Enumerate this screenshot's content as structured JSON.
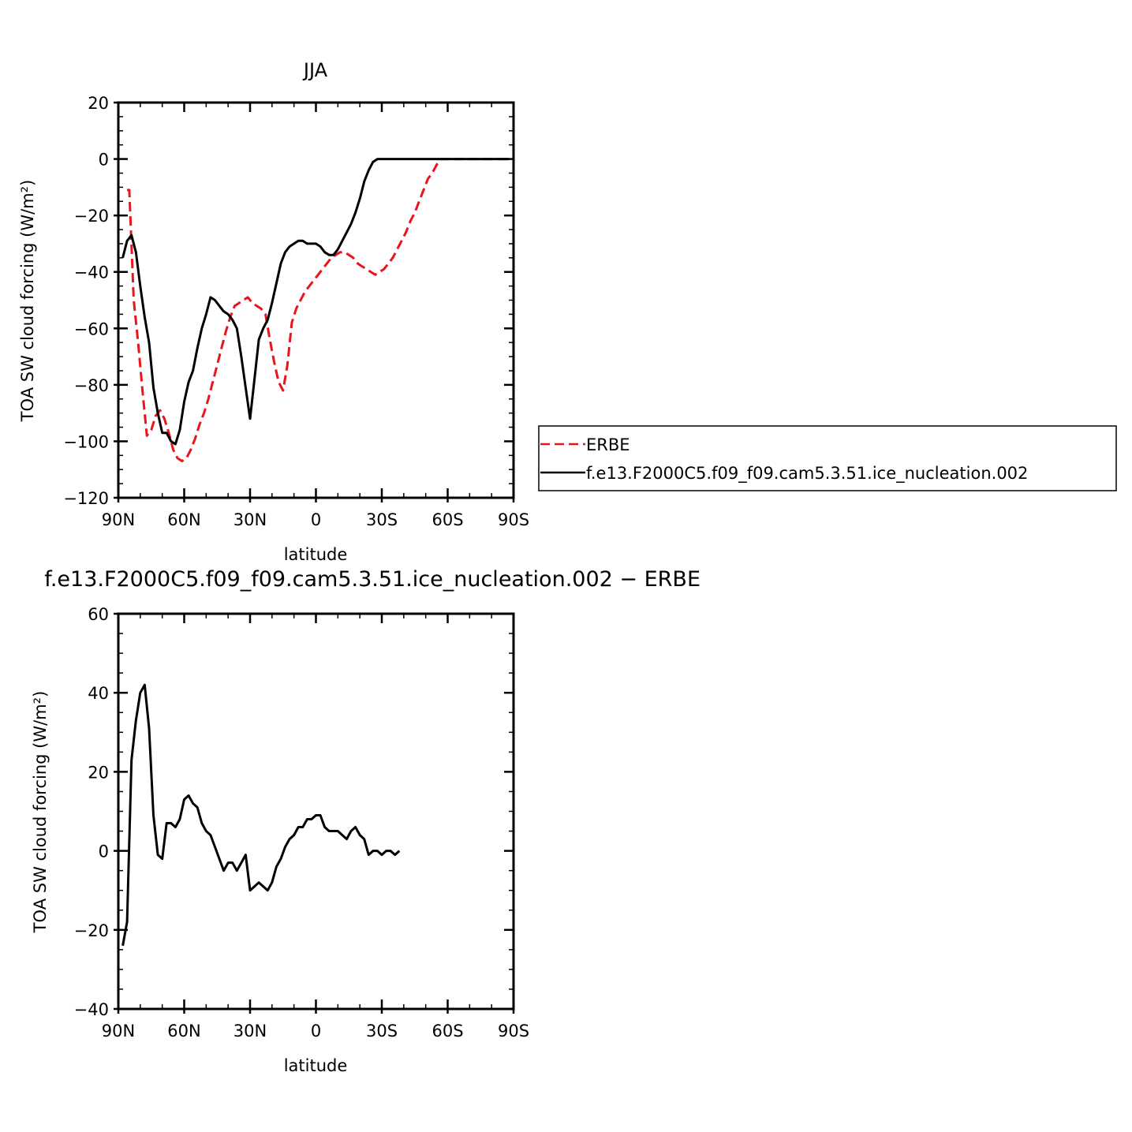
{
  "chart_data": [
    {
      "type": "line",
      "title": "JJA",
      "xlabel": "latitude",
      "ylabel": "TOA SW cloud forcing (W/m²)",
      "ylim": [
        -120,
        20
      ],
      "xlim": [
        90,
        -90
      ],
      "xticks": [
        {
          "value": 90,
          "label": "90N"
        },
        {
          "value": 60,
          "label": "60N"
        },
        {
          "value": 30,
          "label": "30N"
        },
        {
          "value": 0,
          "label": "0"
        },
        {
          "value": -30,
          "label": "30S"
        },
        {
          "value": -60,
          "label": "60S"
        },
        {
          "value": -90,
          "label": "90S"
        }
      ],
      "yticks": [
        {
          "value": 20,
          "label": "20"
        },
        {
          "value": 0,
          "label": "0"
        },
        {
          "value": -20,
          "label": "−20"
        },
        {
          "value": -40,
          "label": "−40"
        },
        {
          "value": -60,
          "label": "−60"
        },
        {
          "value": -80,
          "label": "−80"
        },
        {
          "value": -100,
          "label": "−100"
        },
        {
          "value": -120,
          "label": "−120"
        }
      ],
      "legend_position": "right",
      "series": [
        {
          "name": "ERBE",
          "color": "#e8161c",
          "style": "dashed",
          "points": [
            [
              86,
              -11
            ],
            [
              85,
              -11
            ],
            [
              83,
              -50
            ],
            [
              81,
              -65
            ],
            [
              79,
              -82
            ],
            [
              77,
              -98
            ],
            [
              75,
              -96
            ],
            [
              73,
              -91
            ],
            [
              71,
              -89
            ],
            [
              69,
              -92
            ],
            [
              67,
              -97
            ],
            [
              65,
              -103
            ],
            [
              63,
              -106
            ],
            [
              61,
              -107
            ],
            [
              59,
              -106
            ],
            [
              57,
              -103
            ],
            [
              55,
              -99
            ],
            [
              53,
              -94
            ],
            [
              51,
              -90
            ],
            [
              49,
              -85
            ],
            [
              47,
              -79
            ],
            [
              45,
              -73
            ],
            [
              43,
              -67
            ],
            [
              41,
              -61
            ],
            [
              39,
              -56
            ],
            [
              37,
              -52
            ],
            [
              35,
              -51
            ],
            [
              33,
              -50
            ],
            [
              31,
              -49
            ],
            [
              29,
              -51
            ],
            [
              27,
              -52
            ],
            [
              25,
              -53
            ],
            [
              23,
              -55
            ],
            [
              21,
              -64
            ],
            [
              19,
              -72
            ],
            [
              17,
              -79
            ],
            [
              15,
              -82
            ],
            [
              13,
              -73
            ],
            [
              11,
              -58
            ],
            [
              9,
              -53
            ],
            [
              7,
              -50
            ],
            [
              5,
              -47
            ],
            [
              3,
              -45
            ],
            [
              1,
              -43
            ],
            [
              -1,
              -41
            ],
            [
              -3,
              -39
            ],
            [
              -5,
              -37
            ],
            [
              -7,
              -35
            ],
            [
              -9,
              -34
            ],
            [
              -11,
              -33
            ],
            [
              -13,
              -33
            ],
            [
              -15,
              -34
            ],
            [
              -17,
              -35
            ],
            [
              -19,
              -37
            ],
            [
              -21,
              -38
            ],
            [
              -23,
              -39
            ],
            [
              -25,
              -40
            ],
            [
              -27,
              -41
            ],
            [
              -29,
              -40
            ],
            [
              -31,
              -39
            ],
            [
              -33,
              -37
            ],
            [
              -35,
              -35
            ],
            [
              -37,
              -32
            ],
            [
              -39,
              -29
            ],
            [
              -41,
              -26
            ],
            [
              -43,
              -22
            ],
            [
              -45,
              -19
            ],
            [
              -47,
              -15
            ],
            [
              -49,
              -11
            ],
            [
              -51,
              -7
            ],
            [
              -53,
              -5
            ],
            [
              -55,
              -2
            ],
            [
              -57,
              0
            ],
            [
              -60,
              0
            ],
            [
              -65,
              0
            ],
            [
              -70,
              0
            ],
            [
              -75,
              0
            ],
            [
              -80,
              0
            ],
            [
              -85,
              0
            ],
            [
              -88,
              0
            ]
          ]
        },
        {
          "name": "f.e13.F2000C5.f09_f09.cam5.3.51.ice_nucleation.002",
          "color": "#000000",
          "style": "solid",
          "points": [
            [
              88,
              -35
            ],
            [
              86,
              -29
            ],
            [
              84,
              -27
            ],
            [
              82,
              -33
            ],
            [
              80,
              -45
            ],
            [
              78,
              -56
            ],
            [
              76,
              -65
            ],
            [
              74,
              -81
            ],
            [
              72,
              -90
            ],
            [
              70,
              -97
            ],
            [
              68,
              -97
            ],
            [
              66,
              -100
            ],
            [
              64,
              -101
            ],
            [
              62,
              -96
            ],
            [
              60,
              -86
            ],
            [
              58,
              -79
            ],
            [
              56,
              -75
            ],
            [
              54,
              -67
            ],
            [
              52,
              -60
            ],
            [
              50,
              -55
            ],
            [
              48,
              -49
            ],
            [
              46,
              -50
            ],
            [
              44,
              -52
            ],
            [
              42,
              -54
            ],
            [
              40,
              -55
            ],
            [
              38,
              -57
            ],
            [
              36,
              -60
            ],
            [
              34,
              -70
            ],
            [
              32,
              -81
            ],
            [
              30,
              -92
            ],
            [
              28,
              -78
            ],
            [
              26,
              -64
            ],
            [
              24,
              -60
            ],
            [
              22,
              -57
            ],
            [
              20,
              -51
            ],
            [
              18,
              -44
            ],
            [
              16,
              -37
            ],
            [
              14,
              -33
            ],
            [
              12,
              -31
            ],
            [
              10,
              -30
            ],
            [
              8,
              -29
            ],
            [
              6,
              -29
            ],
            [
              4,
              -30
            ],
            [
              2,
              -30
            ],
            [
              0,
              -30
            ],
            [
              -2,
              -31
            ],
            [
              -4,
              -33
            ],
            [
              -6,
              -34
            ],
            [
              -8,
              -34
            ],
            [
              -10,
              -32
            ],
            [
              -12,
              -29
            ],
            [
              -14,
              -26
            ],
            [
              -16,
              -23
            ],
            [
              -18,
              -19
            ],
            [
              -20,
              -14
            ],
            [
              -22,
              -8
            ],
            [
              -24,
              -4
            ],
            [
              -26,
              -1
            ],
            [
              -28,
              0
            ],
            [
              -35,
              0
            ],
            [
              -45,
              0
            ],
            [
              -55,
              0
            ],
            [
              -65,
              0
            ],
            [
              -75,
              0
            ],
            [
              -85,
              0
            ],
            [
              -88,
              0
            ]
          ]
        }
      ]
    },
    {
      "type": "line",
      "title": "f.e13.F2000C5.f09_f09.cam5.3.51.ice_nucleation.002 − ERBE",
      "xlabel": "latitude",
      "ylabel": "TOA SW cloud forcing (W/m²)",
      "ylim": [
        -40,
        60
      ],
      "xlim": [
        90,
        -90
      ],
      "xticks": [
        {
          "value": 90,
          "label": "90N"
        },
        {
          "value": 60,
          "label": "60N"
        },
        {
          "value": 30,
          "label": "30N"
        },
        {
          "value": 0,
          "label": "0"
        },
        {
          "value": -30,
          "label": "30S"
        },
        {
          "value": -60,
          "label": "60S"
        },
        {
          "value": -90,
          "label": "90S"
        }
      ],
      "yticks": [
        {
          "value": 60,
          "label": "60"
        },
        {
          "value": 40,
          "label": "40"
        },
        {
          "value": 20,
          "label": "20"
        },
        {
          "value": 0,
          "label": "0"
        },
        {
          "value": -20,
          "label": "−20"
        },
        {
          "value": -40,
          "label": "−40"
        }
      ],
      "series": [
        {
          "color": "#000000",
          "style": "solid",
          "points": [
            [
              88,
              -24
            ],
            [
              86,
              -18
            ],
            [
              84,
              23
            ],
            [
              82,
              33
            ],
            [
              80,
              40
            ],
            [
              78,
              42
            ],
            [
              76,
              31
            ],
            [
              74,
              9
            ],
            [
              72,
              -1
            ],
            [
              70,
              -2
            ],
            [
              68,
              7
            ],
            [
              66,
              7
            ],
            [
              64,
              6
            ],
            [
              62,
              8
            ],
            [
              60,
              13
            ],
            [
              58,
              14
            ],
            [
              56,
              12
            ],
            [
              54,
              11
            ],
            [
              52,
              7
            ],
            [
              50,
              5
            ],
            [
              48,
              4
            ],
            [
              46,
              1
            ],
            [
              44,
              -2
            ],
            [
              42,
              -5
            ],
            [
              40,
              -3
            ],
            [
              38,
              -3
            ],
            [
              36,
              -5
            ],
            [
              34,
              -3
            ],
            [
              32,
              -1
            ],
            [
              30,
              -10
            ],
            [
              28,
              -9
            ],
            [
              26,
              -8
            ],
            [
              24,
              -9
            ],
            [
              22,
              -10
            ],
            [
              20,
              -8
            ],
            [
              18,
              -4
            ],
            [
              16,
              -2
            ],
            [
              14,
              1
            ],
            [
              12,
              3
            ],
            [
              10,
              4
            ],
            [
              8,
              6
            ],
            [
              6,
              6
            ],
            [
              4,
              8
            ],
            [
              2,
              8
            ],
            [
              0,
              9
            ],
            [
              -2,
              9
            ],
            [
              -4,
              6
            ],
            [
              -6,
              5
            ],
            [
              -8,
              5
            ],
            [
              -10,
              5
            ],
            [
              -12,
              4
            ],
            [
              -14,
              3
            ],
            [
              -16,
              5
            ],
            [
              -18,
              6
            ],
            [
              -20,
              4
            ],
            [
              -22,
              3
            ],
            [
              -24,
              -1
            ],
            [
              -26,
              0
            ],
            [
              -28,
              0
            ],
            [
              -30,
              -1
            ],
            [
              -32,
              0
            ],
            [
              -34,
              0
            ],
            [
              -36,
              -1
            ],
            [
              -38,
              0
            ]
          ]
        }
      ]
    }
  ]
}
